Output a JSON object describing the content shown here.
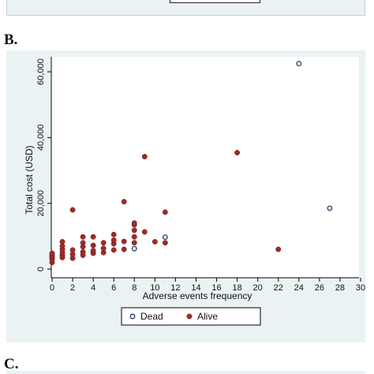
{
  "panel_labels": {
    "b": "B.",
    "c": "C."
  },
  "chart_data": {
    "type": "scatter",
    "xlabel": "Adverse events frequency",
    "ylabel": "Total cost (USD)",
    "xlim": [
      0,
      30
    ],
    "ylim": [
      0,
      60000
    ],
    "xticks": [
      0,
      2,
      4,
      6,
      8,
      10,
      12,
      14,
      16,
      18,
      20,
      22,
      24,
      26,
      28,
      30
    ],
    "yticks": [
      0,
      20000,
      40000,
      60000
    ],
    "ytick_labels": [
      "0",
      "20,000",
      "40,000",
      "60,000"
    ],
    "grid": false,
    "legend_position": "bottom",
    "series": [
      {
        "name": "Dead",
        "marker": "hollow circle",
        "color": "#1f3f6e",
        "points": [
          [
            24,
            62500
          ],
          [
            27,
            18500
          ],
          [
            11,
            9700
          ],
          [
            8,
            6200
          ]
        ]
      },
      {
        "name": "Alive",
        "marker": "filled circle",
        "color": "#9b2c2c",
        "points": [
          [
            0,
            2000
          ],
          [
            0,
            3000
          ],
          [
            0,
            3600
          ],
          [
            0,
            4200
          ],
          [
            0,
            4800
          ],
          [
            1,
            3500
          ],
          [
            1,
            4200
          ],
          [
            1,
            5000
          ],
          [
            1,
            6000
          ],
          [
            1,
            7000
          ],
          [
            1,
            8300
          ],
          [
            2,
            3300
          ],
          [
            2,
            4500
          ],
          [
            2,
            5800
          ],
          [
            2,
            18000
          ],
          [
            3,
            4200
          ],
          [
            3,
            5200
          ],
          [
            3,
            6800
          ],
          [
            3,
            8000
          ],
          [
            3,
            9800
          ],
          [
            4,
            4800
          ],
          [
            4,
            5600
          ],
          [
            4,
            7200
          ],
          [
            4,
            9800
          ],
          [
            5,
            5000
          ],
          [
            5,
            6300
          ],
          [
            5,
            8000
          ],
          [
            6,
            5800
          ],
          [
            6,
            7700
          ],
          [
            6,
            8800
          ],
          [
            6,
            10500
          ],
          [
            7,
            6000
          ],
          [
            7,
            8400
          ],
          [
            7,
            20500
          ],
          [
            8,
            8000
          ],
          [
            8,
            9800
          ],
          [
            8,
            11800
          ],
          [
            8,
            13500
          ],
          [
            8,
            14000
          ],
          [
            9,
            11300
          ],
          [
            9,
            34200
          ],
          [
            10,
            8300
          ],
          [
            11,
            8000
          ],
          [
            11,
            17300
          ],
          [
            18,
            35400
          ],
          [
            22,
            6000
          ]
        ]
      }
    ]
  }
}
